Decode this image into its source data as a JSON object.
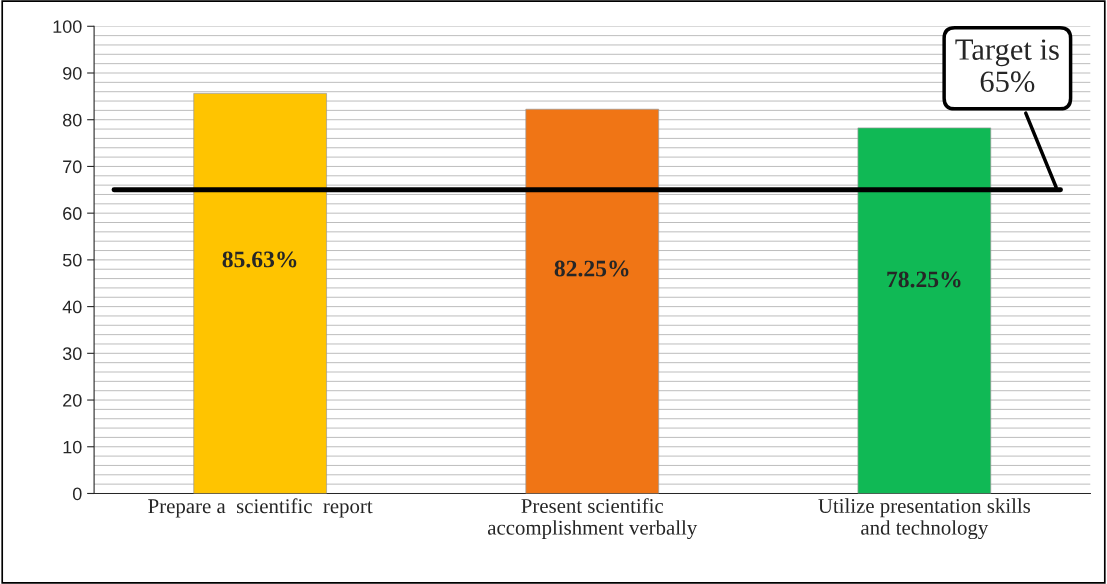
{
  "chart_data": {
    "type": "bar",
    "categories": [
      "Prepare a  scientific  report",
      "Present scientific\naccomplishment verbally",
      "Utilize presentation skills\nand technology"
    ],
    "values": [
      85.63,
      82.25,
      78.25
    ],
    "colors": [
      "#ffc400",
      "#f07515",
      "#10b955"
    ],
    "value_labels": [
      "85.63%",
      "82.25%",
      "78.25%"
    ],
    "ylim": [
      0,
      100
    ],
    "yticks": [
      0,
      10,
      20,
      30,
      40,
      50,
      60,
      70,
      80,
      90,
      100
    ],
    "grid": "y",
    "ref_lines": [
      {
        "axis": "y",
        "value": 65,
        "label": "Target is\n65%",
        "color": "#000000"
      }
    ]
  }
}
